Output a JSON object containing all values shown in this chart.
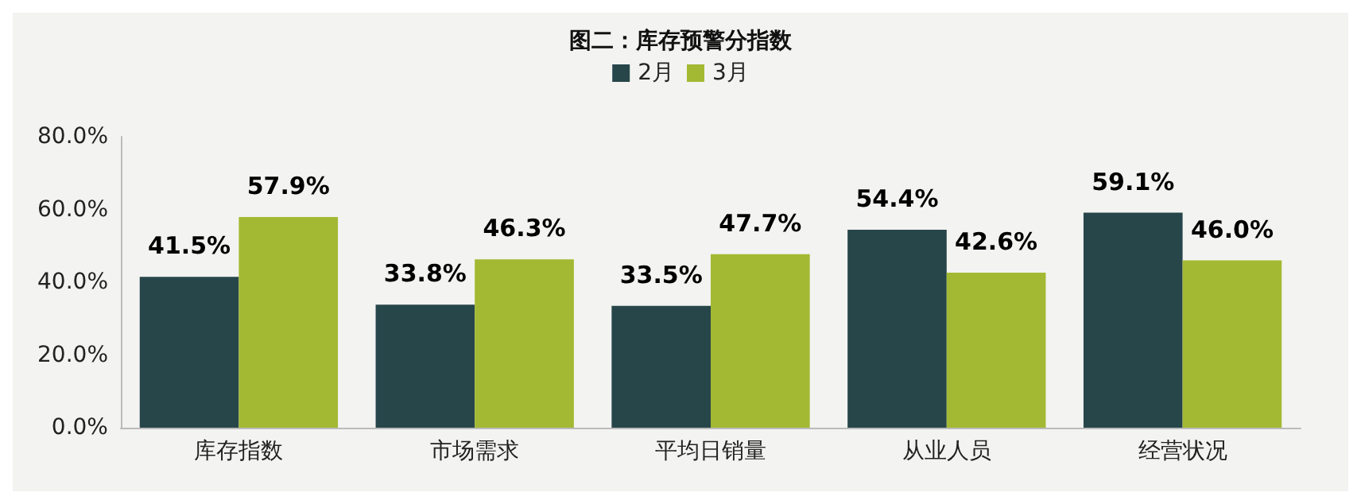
{
  "chart_data": {
    "type": "bar",
    "title": "图二：库存预警分指数",
    "categories": [
      "库存指数",
      "市场需求",
      "平均日销量",
      "从业人员",
      "经营状况"
    ],
    "series": [
      {
        "name": "2月",
        "color": "#27464a",
        "values": [
          41.5,
          33.8,
          33.5,
          54.4,
          59.1
        ],
        "value_labels": [
          "41.5%",
          "33.8%",
          "33.5%",
          "54.4%",
          "59.1%"
        ]
      },
      {
        "name": "3月",
        "color": "#a3b933",
        "values": [
          57.9,
          46.3,
          47.7,
          42.6,
          46.0
        ],
        "value_labels": [
          "57.9%",
          "46.3%",
          "47.7%",
          "42.6%",
          "46.0%"
        ]
      }
    ],
    "ylim": [
      0,
      80
    ],
    "yticks": [
      {
        "value": 0,
        "label": "0.0%"
      },
      {
        "value": 20,
        "label": "20.0%"
      },
      {
        "value": 40,
        "label": "40.0%"
      },
      {
        "value": 60,
        "label": "60.0%"
      },
      {
        "value": 80,
        "label": "80.0%"
      }
    ],
    "grid": false,
    "legend": "top"
  }
}
